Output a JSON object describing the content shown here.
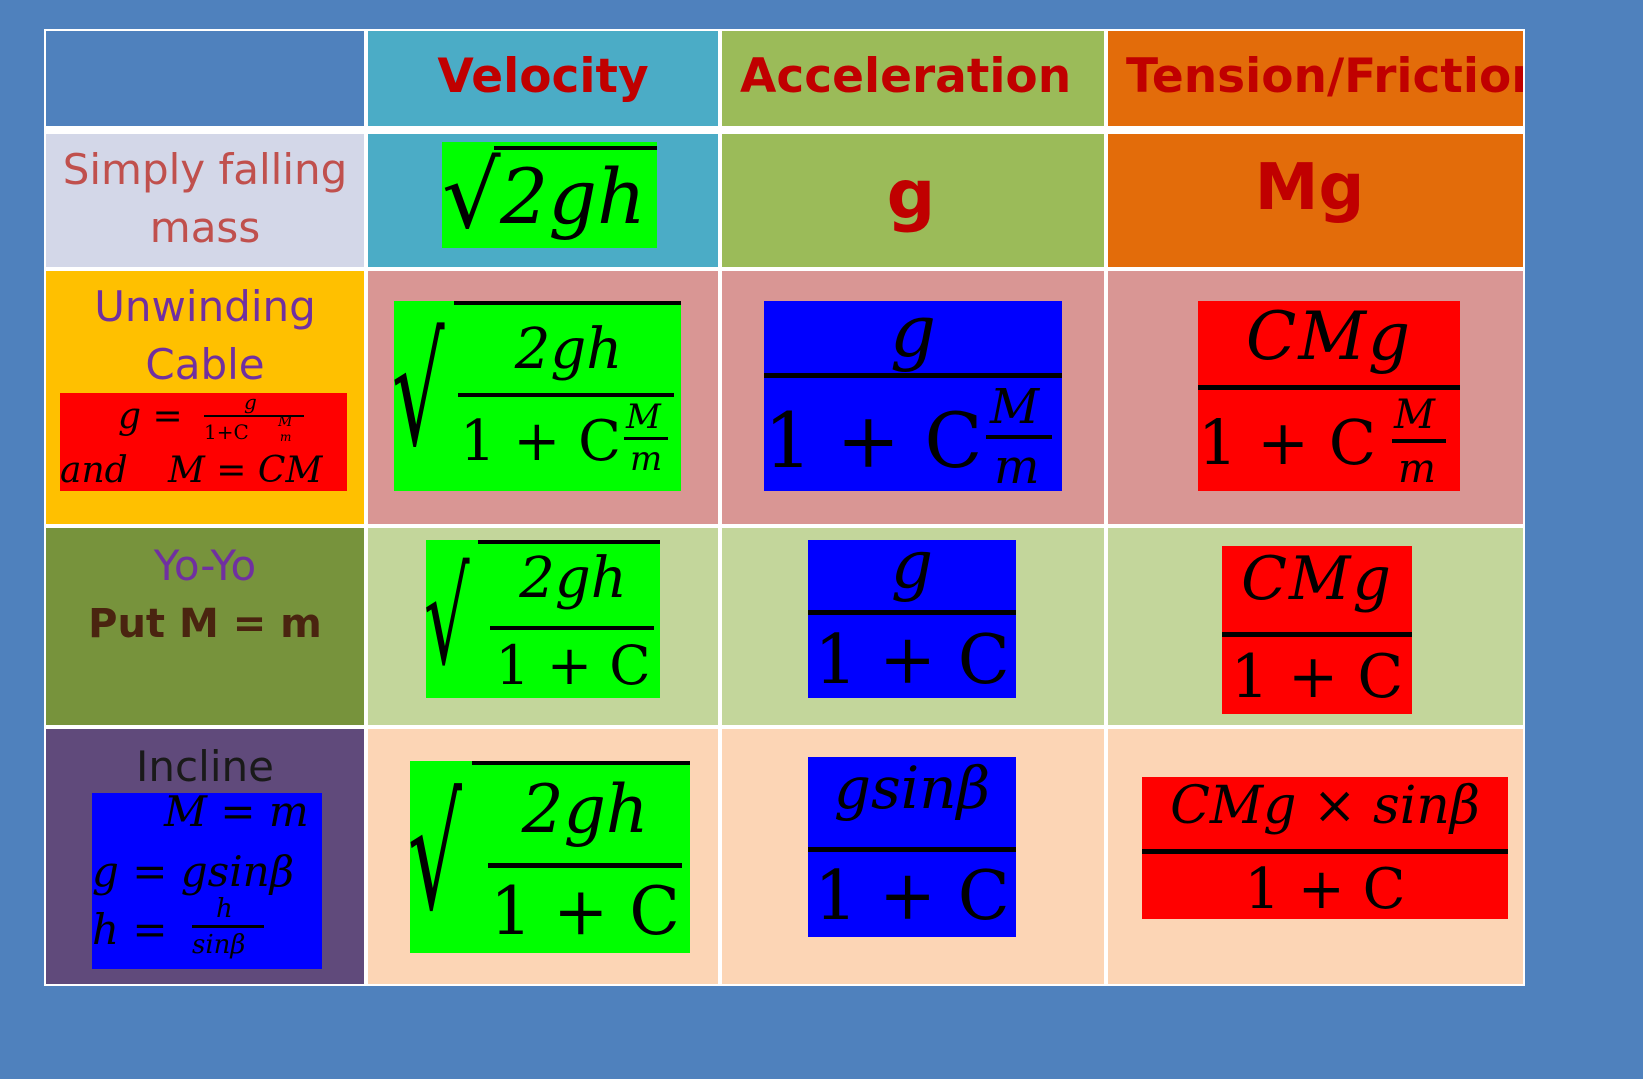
{
  "header": {
    "velocity": "Velocity",
    "acceleration": "Acceleration",
    "tension": "Tension/Friction"
  },
  "rows": {
    "falling": {
      "label_line1": "Simply falling",
      "label_line2": "mass",
      "velocity_radicand": "2gh",
      "acceleration": "g",
      "tension": "Mg"
    },
    "unwinding": {
      "label_line1": "Unwinding",
      "label_line2": "Cable",
      "note_g": "g =",
      "note_frac_num": "g",
      "note_frac_den": "1+C",
      "note_frac_den_m": "M",
      "note_frac_den_mm": "m",
      "note_and": "and",
      "note_M": "M = CM",
      "velocity_num": "2gh",
      "velocity_den": "1 + C",
      "velocity_den_M": "M",
      "velocity_den_m": "m",
      "acc_num": "g",
      "acc_den": "1 + C",
      "acc_den_M": "M",
      "acc_den_m": "m",
      "ten_num": "CMg",
      "ten_den": "1 + C",
      "ten_den_M": "M",
      "ten_den_m": "m"
    },
    "yoyo": {
      "label_line1": "Yo-Yo",
      "label_line2": "Put M = m",
      "velocity_num": "2gh",
      "velocity_den": "1 + C",
      "acc_num": "g",
      "acc_den": "1 + C",
      "ten_num": "CMg",
      "ten_den": "1 + C"
    },
    "incline": {
      "label_line1": "Incline",
      "note_1": "M = m",
      "note_2": "g = gsinβ",
      "note_3_lhs": "h =",
      "note_3_num": "h",
      "note_3_den": "sinβ",
      "velocity_num": "2gh",
      "velocity_den": "1 + C",
      "acc_num": "gsinβ",
      "acc_den": "1 + C",
      "ten_num": "CMg × sinβ",
      "ten_den": "1 + C"
    }
  },
  "colors": {
    "background": "#4f81bd",
    "header_label_bg": "#4f81bd",
    "velocity_bg": "#4bacc6",
    "acceleration_bg": "#9bbb59",
    "tension_bg": "#e36c0a",
    "header_text": "#c00000",
    "green_box": "#00ff00",
    "blue_box": "#0000ff",
    "red_box": "#ff0000",
    "row1_label_bg": "#d3d7e8",
    "row2_label_bg": "#ffc000",
    "row2_bg": "#d99694",
    "row3_label_bg": "#77933c",
    "row3_bg": "#c3d69b",
    "row4_label_bg": "#604a7b",
    "row4_bg": "#fcd5b5"
  }
}
